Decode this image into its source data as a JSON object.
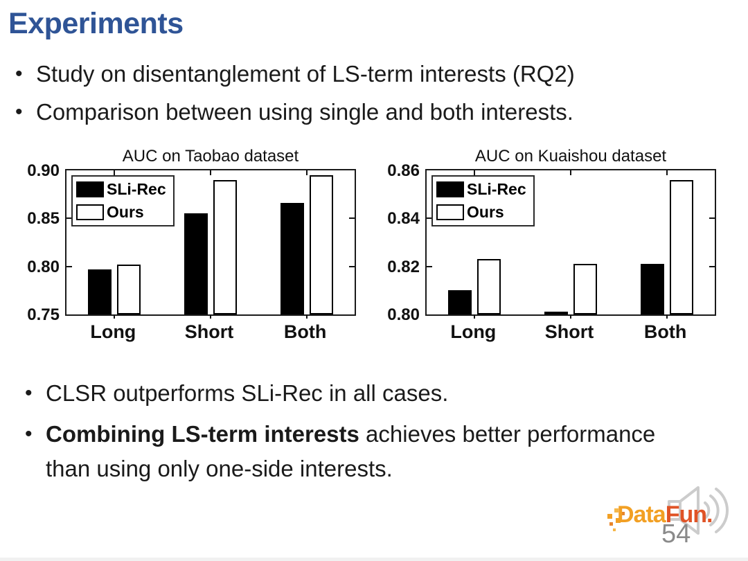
{
  "slide": {
    "title": "Experiments",
    "title_color": "#2F5496",
    "bullet_char": "•",
    "bullets_top": [
      "Study on disentanglement of LS-term interests (RQ2)",
      "Comparison between using single and both interests."
    ],
    "bullets_bottom": [
      {
        "bold": "",
        "rest": "CLSR outperforms SLi-Rec in all cases.",
        "rest_line2": ""
      },
      {
        "bold": "Combining LS-term interests",
        "rest": " achieves better performance",
        "rest_line2": "than using only one-side interests."
      }
    ],
    "page_number": "54",
    "logo": {
      "text_part1": "Data",
      "text_part2": "Fun.",
      "color1": "#F2A024",
      "color2": "#E05326",
      "speaker_icon": "speaker-with-sound-waves"
    }
  },
  "chart_data": [
    {
      "type": "bar",
      "title": "AUC on Taobao dataset",
      "categories": [
        "Long",
        "Short",
        "Both"
      ],
      "series": [
        {
          "name": "SLi-Rec",
          "fill": "#000000",
          "values": [
            0.797,
            0.855,
            0.866
          ]
        },
        {
          "name": "Ours",
          "fill": "#FFFFFF",
          "values": [
            0.802,
            0.89,
            0.895
          ]
        }
      ],
      "ylim": [
        0.75,
        0.9
      ],
      "yticks": [
        0.75,
        0.8,
        0.85,
        0.9
      ],
      "ytick_labels": [
        "0.75",
        "0.80",
        "0.85",
        "0.90"
      ],
      "legend_position": "top-left",
      "grid": false
    },
    {
      "type": "bar",
      "title": "AUC on Kuaishou dataset",
      "categories": [
        "Long",
        "Short",
        "Both"
      ],
      "series": [
        {
          "name": "SLi-Rec",
          "fill": "#000000",
          "values": [
            0.81,
            0.801,
            0.821
          ]
        },
        {
          "name": "Ours",
          "fill": "#FFFFFF",
          "values": [
            0.823,
            0.821,
            0.856
          ]
        }
      ],
      "ylim": [
        0.8,
        0.86
      ],
      "yticks": [
        0.8,
        0.82,
        0.84,
        0.86
      ],
      "ytick_labels": [
        "0.80",
        "0.82",
        "0.84",
        "0.86"
      ],
      "legend_position": "top-left",
      "grid": false
    }
  ]
}
